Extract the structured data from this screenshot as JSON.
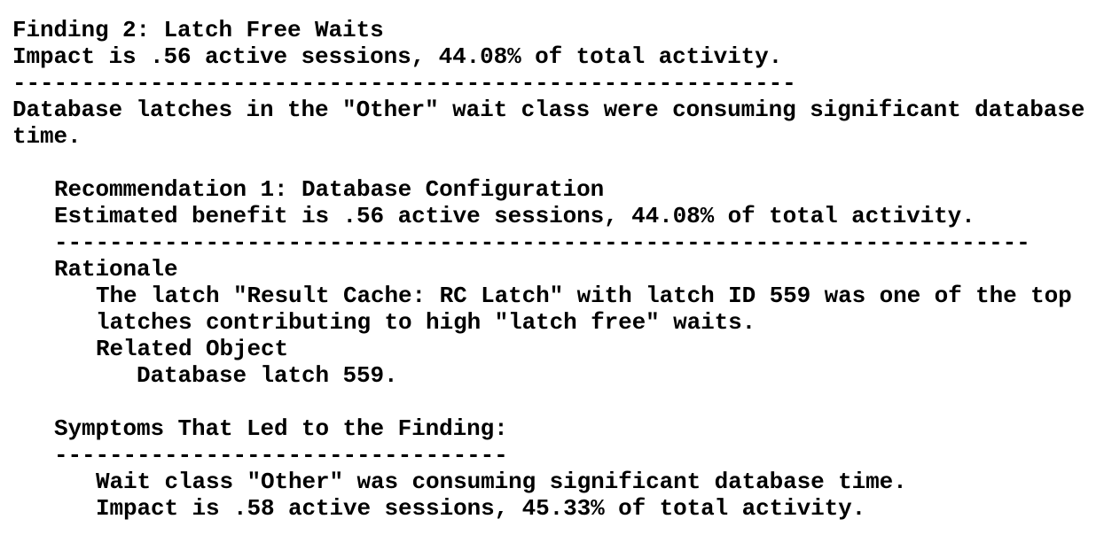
{
  "finding": {
    "title": "Finding 2: Latch Free Waits",
    "impact": "Impact is .56 active sessions, 44.08% of total activity.",
    "rule": "---------------------------------------------------------",
    "description_line1": "Database latches in the \"Other\" wait class were consuming significant database",
    "description_line2": "time."
  },
  "recommendation": {
    "title": "Recommendation 1: Database Configuration",
    "benefit": "Estimated benefit is .56 active sessions, 44.08% of total activity.",
    "rule": "-----------------------------------------------------------------------",
    "rationale_heading": "Rationale",
    "rationale_line1": "The latch \"Result Cache: RC Latch\" with latch ID 559 was one of the top",
    "rationale_line2": "latches contributing to high \"latch free\" waits.",
    "related_object_heading": "Related Object",
    "related_object": "Database latch 559."
  },
  "symptoms": {
    "heading": "Symptoms That Led to the Finding:",
    "rule": "---------------------------------",
    "line1": "Wait class \"Other\" was consuming significant database time.",
    "line2": "Impact is .58 active sessions, 45.33% of total activity."
  }
}
